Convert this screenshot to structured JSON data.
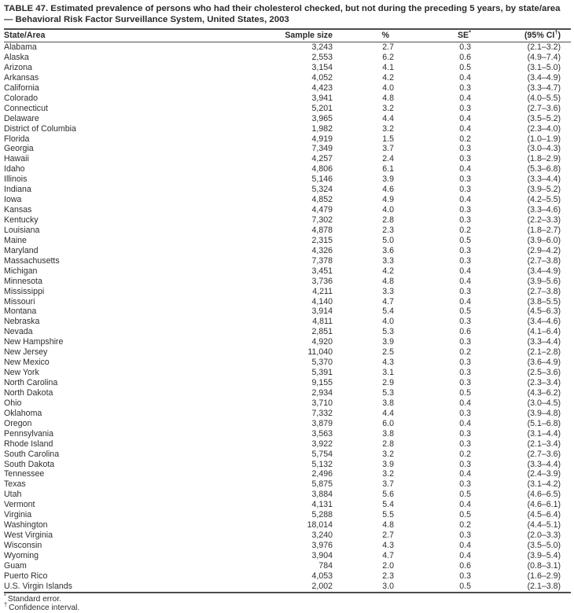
{
  "table": {
    "title": "TABLE 47. Estimated prevalence of persons who had their cholesterol checked, but not during the preceding 5 years, by state/area — Behavioral Risk Factor Surveillance System, United States, 2003",
    "columns": [
      {
        "label": "State/Area",
        "sup": "",
        "suffix": ""
      },
      {
        "label": "Sample size",
        "sup": "",
        "suffix": ""
      },
      {
        "label": "%",
        "sup": "",
        "suffix": ""
      },
      {
        "label": "SE",
        "sup": "*",
        "suffix": ""
      },
      {
        "label": "(95% CI",
        "sup": "†",
        "suffix": ")"
      }
    ],
    "rows": [
      [
        "Alabama",
        "3,243",
        "2.7",
        "0.3",
        "(2.1–3.2)"
      ],
      [
        "Alaska",
        "2,553",
        "6.2",
        "0.6",
        "(4.9–7.4)"
      ],
      [
        "Arizona",
        "3,154",
        "4.1",
        "0.5",
        "(3.1–5.0)"
      ],
      [
        "Arkansas",
        "4,052",
        "4.2",
        "0.4",
        "(3.4–4.9)"
      ],
      [
        "California",
        "4,423",
        "4.0",
        "0.3",
        "(3.3–4.7)"
      ],
      [
        "Colorado",
        "3,941",
        "4.8",
        "0.4",
        "(4.0–5.5)"
      ],
      [
        "Connecticut",
        "5,201",
        "3.2",
        "0.3",
        "(2.7–3.6)"
      ],
      [
        "Delaware",
        "3,965",
        "4.4",
        "0.4",
        "(3.5–5.2)"
      ],
      [
        "District of Columbia",
        "1,982",
        "3.2",
        "0.4",
        "(2.3–4.0)"
      ],
      [
        "Florida",
        "4,919",
        "1.5",
        "0.2",
        "(1.0–1.9)"
      ],
      [
        "Georgia",
        "7,349",
        "3.7",
        "0.3",
        "(3.0–4.3)"
      ],
      [
        "Hawaii",
        "4,257",
        "2.4",
        "0.3",
        "(1.8–2.9)"
      ],
      [
        "Idaho",
        "4,806",
        "6.1",
        "0.4",
        "(5.3–6.8)"
      ],
      [
        "Illinois",
        "5,146",
        "3.9",
        "0.3",
        "(3.3–4.4)"
      ],
      [
        "Indiana",
        "5,324",
        "4.6",
        "0.3",
        "(3.9–5.2)"
      ],
      [
        "Iowa",
        "4,852",
        "4.9",
        "0.4",
        "(4.2–5.5)"
      ],
      [
        "Kansas",
        "4,479",
        "4.0",
        "0.3",
        "(3.3–4.6)"
      ],
      [
        "Kentucky",
        "7,302",
        "2.8",
        "0.3",
        "(2.2–3.3)"
      ],
      [
        "Louisiana",
        "4,878",
        "2.3",
        "0.2",
        "(1.8–2.7)"
      ],
      [
        "Maine",
        "2,315",
        "5.0",
        "0.5",
        "(3.9–6.0)"
      ],
      [
        "Maryland",
        "4,326",
        "3.6",
        "0.3",
        "(2.9–4.2)"
      ],
      [
        "Massachusetts",
        "7,378",
        "3.3",
        "0.3",
        "(2.7–3.8)"
      ],
      [
        "Michigan",
        "3,451",
        "4.2",
        "0.4",
        "(3.4–4.9)"
      ],
      [
        "Minnesota",
        "3,736",
        "4.8",
        "0.4",
        "(3.9–5.6)"
      ],
      [
        "Mississippi",
        "4,211",
        "3.3",
        "0.3",
        "(2.7–3.8)"
      ],
      [
        "Missouri",
        "4,140",
        "4.7",
        "0.4",
        "(3.8–5.5)"
      ],
      [
        "Montana",
        "3,914",
        "5.4",
        "0.5",
        "(4.5–6.3)"
      ],
      [
        "Nebraska",
        "4,811",
        "4.0",
        "0.3",
        "(3.4–4.6)"
      ],
      [
        "Nevada",
        "2,851",
        "5.3",
        "0.6",
        "(4.1–6.4)"
      ],
      [
        "New Hampshire",
        "4,920",
        "3.9",
        "0.3",
        "(3.3–4.4)"
      ],
      [
        "New Jersey",
        "11,040",
        "2.5",
        "0.2",
        "(2.1–2.8)"
      ],
      [
        "New Mexico",
        "5,370",
        "4.3",
        "0.3",
        "(3.6–4.9)"
      ],
      [
        "New York",
        "5,391",
        "3.1",
        "0.3",
        "(2.5–3.6)"
      ],
      [
        "North Carolina",
        "9,155",
        "2.9",
        "0.3",
        "(2.3–3.4)"
      ],
      [
        "North Dakota",
        "2,934",
        "5.3",
        "0.5",
        "(4.3–6.2)"
      ],
      [
        "Ohio",
        "3,710",
        "3.8",
        "0.4",
        "(3.0–4.5)"
      ],
      [
        "Oklahoma",
        "7,332",
        "4.4",
        "0.3",
        "(3.9–4.8)"
      ],
      [
        "Oregon",
        "3,879",
        "6.0",
        "0.4",
        "(5.1–6.8)"
      ],
      [
        "Pennsylvania",
        "3,563",
        "3.8",
        "0.3",
        "(3.1–4.4)"
      ],
      [
        "Rhode Island",
        "3,922",
        "2.8",
        "0.3",
        "(2.1–3.4)"
      ],
      [
        "South Carolina",
        "5,754",
        "3.2",
        "0.2",
        "(2.7–3.6)"
      ],
      [
        "South Dakota",
        "5,132",
        "3.9",
        "0.3",
        "(3.3–4.4)"
      ],
      [
        "Tennessee",
        "2,496",
        "3.2",
        "0.4",
        "(2.4–3.9)"
      ],
      [
        "Texas",
        "5,875",
        "3.7",
        "0.3",
        "(3.1–4.2)"
      ],
      [
        "Utah",
        "3,884",
        "5.6",
        "0.5",
        "(4.6–6.5)"
      ],
      [
        "Vermont",
        "4,131",
        "5.4",
        "0.4",
        "(4.6–6.1)"
      ],
      [
        "Virginia",
        "5,288",
        "5.5",
        "0.5",
        "(4.5–6.4)"
      ],
      [
        "Washington",
        "18,014",
        "4.8",
        "0.2",
        "(4.4–5.1)"
      ],
      [
        "West Virginia",
        "3,240",
        "2.7",
        "0.3",
        "(2.0–3.3)"
      ],
      [
        "Wisconsin",
        "3,976",
        "4.3",
        "0.4",
        "(3.5–5.0)"
      ],
      [
        "Wyoming",
        "3,904",
        "4.7",
        "0.4",
        "(3.9–5.4)"
      ],
      [
        "Guam",
        "784",
        "2.0",
        "0.6",
        "(0.8–3.1)"
      ],
      [
        "Puerto Rico",
        "4,053",
        "2.3",
        "0.3",
        "(1.6–2.9)"
      ],
      [
        "U.S. Virgin Islands",
        "2,002",
        "3.0",
        "0.5",
        "(2.1–3.8)"
      ]
    ]
  },
  "footnotes": [
    {
      "marker": "*",
      "text": "Standard error."
    },
    {
      "marker": "†",
      "text": "Confidence interval."
    }
  ]
}
